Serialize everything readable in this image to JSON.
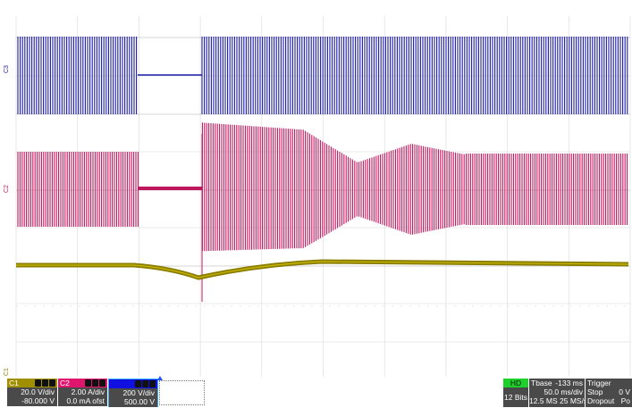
{
  "traces": {
    "ch3_color": "#1a1aa8",
    "ch2_color": "#c0165e",
    "ch1_color": "#8a7d00",
    "markers": {
      "ch3": "C3",
      "ch2": "C2",
      "ch1": "C1"
    }
  },
  "channels": [
    {
      "name": "C1",
      "scale": "20.0 V/div",
      "offset": "-80.000 V",
      "color": "#a09000"
    },
    {
      "name": "C2",
      "scale": "2.00 A/div",
      "offset": "0.0 mA ofst",
      "color": "#e0166e"
    },
    {
      "name": "",
      "scale": "200 V/div",
      "offset": "500.00 V",
      "color": "#1010e0"
    }
  ],
  "acquisition": {
    "mode": "HD",
    "bits": "12 Bits",
    "tbase_label": "Tbase",
    "tbase_delay": "-133 ms",
    "time_per_div": "50.0 ms/div",
    "samples": "12.5 MS",
    "sample_rate": "25 MS/s",
    "trigger_label": "Trigger",
    "trigger_mode": "Stop",
    "trigger_type": "Dropout",
    "trigger_level": "0 V",
    "trigger_extra": "Po"
  }
}
